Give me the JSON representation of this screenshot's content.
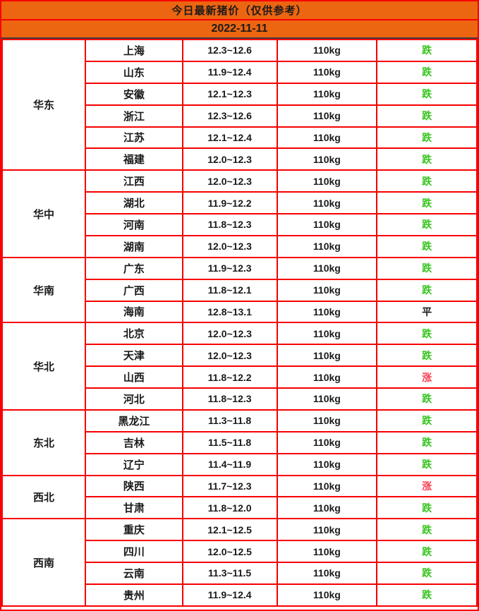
{
  "colors": {
    "header_bg": "#EC6511",
    "grid_border": "#F80000",
    "date_divider": "#3F3F3F",
    "trend_down_green": "#36C41E",
    "trend_up_red": "#FA3C4E",
    "trend_flat_black": "#1A1A1A"
  },
  "chart_data": {
    "type": "table",
    "title": "今日最新猪价（仅供参考）",
    "date": "2022-11-11",
    "legend": {
      "down_label": "跌",
      "up_label": "涨",
      "flat_label": "平"
    },
    "groups": [
      {
        "region": "华东",
        "rows": [
          {
            "province": "上海",
            "price": "12.3~12.6",
            "weight": "110kg",
            "trend": "跌",
            "trend_type": "down"
          },
          {
            "province": "山东",
            "price": "11.9~12.4",
            "weight": "110kg",
            "trend": "跌",
            "trend_type": "down"
          },
          {
            "province": "安徽",
            "price": "12.1~12.3",
            "weight": "110kg",
            "trend": "跌",
            "trend_type": "down"
          },
          {
            "province": "浙江",
            "price": "12.3~12.6",
            "weight": "110kg",
            "trend": "跌",
            "trend_type": "down"
          },
          {
            "province": "江苏",
            "price": "12.1~12.4",
            "weight": "110kg",
            "trend": "跌",
            "trend_type": "down"
          },
          {
            "province": "福建",
            "price": "12.0~12.3",
            "weight": "110kg",
            "trend": "跌",
            "trend_type": "down"
          }
        ]
      },
      {
        "region": "华中",
        "rows": [
          {
            "province": "江西",
            "price": "12.0~12.3",
            "weight": "110kg",
            "trend": "跌",
            "trend_type": "down"
          },
          {
            "province": "湖北",
            "price": "11.9~12.2",
            "weight": "110kg",
            "trend": "跌",
            "trend_type": "down"
          },
          {
            "province": "河南",
            "price": "11.8~12.3",
            "weight": "110kg",
            "trend": "跌",
            "trend_type": "down"
          },
          {
            "province": "湖南",
            "price": "12.0~12.3",
            "weight": "110kg",
            "trend": "跌",
            "trend_type": "down"
          }
        ]
      },
      {
        "region": "华南",
        "rows": [
          {
            "province": "广东",
            "price": "11.9~12.3",
            "weight": "110kg",
            "trend": "跌",
            "trend_type": "down"
          },
          {
            "province": "广西",
            "price": "11.8~12.1",
            "weight": "110kg",
            "trend": "跌",
            "trend_type": "down"
          },
          {
            "province": "海南",
            "price": "12.8~13.1",
            "weight": "110kg",
            "trend": "平",
            "trend_type": "flat"
          }
        ]
      },
      {
        "region": "华北",
        "rows": [
          {
            "province": "北京",
            "price": "12.0~12.3",
            "weight": "110kg",
            "trend": "跌",
            "trend_type": "down"
          },
          {
            "province": "天津",
            "price": "12.0~12.3",
            "weight": "110kg",
            "trend": "跌",
            "trend_type": "down"
          },
          {
            "province": "山西",
            "price": "11.8~12.2",
            "weight": "110kg",
            "trend": "涨",
            "trend_type": "up"
          },
          {
            "province": "河北",
            "price": "11.8~12.3",
            "weight": "110kg",
            "trend": "跌",
            "trend_type": "down"
          }
        ]
      },
      {
        "region": "东北",
        "rows": [
          {
            "province": "黑龙江",
            "price": "11.3~11.8",
            "weight": "110kg",
            "trend": "跌",
            "trend_type": "down"
          },
          {
            "province": "吉林",
            "price": "11.5~11.8",
            "weight": "110kg",
            "trend": "跌",
            "trend_type": "down"
          },
          {
            "province": "辽宁",
            "price": "11.4~11.9",
            "weight": "110kg",
            "trend": "跌",
            "trend_type": "down"
          }
        ]
      },
      {
        "region": "西北",
        "rows": [
          {
            "province": "陕西",
            "price": "11.7~12.3",
            "weight": "110kg",
            "trend": "涨",
            "trend_type": "up"
          },
          {
            "province": "甘肃",
            "price": "11.8~12.0",
            "weight": "110kg",
            "trend": "跌",
            "trend_type": "down"
          }
        ]
      },
      {
        "region": "西南",
        "rows": [
          {
            "province": "重庆",
            "price": "12.1~12.5",
            "weight": "110kg",
            "trend": "跌",
            "trend_type": "down"
          },
          {
            "province": "四川",
            "price": "12.0~12.5",
            "weight": "110kg",
            "trend": "跌",
            "trend_type": "down"
          },
          {
            "province": "云南",
            "price": "11.3~11.5",
            "weight": "110kg",
            "trend": "跌",
            "trend_type": "down"
          },
          {
            "province": "贵州",
            "price": "11.9~12.4",
            "weight": "110kg",
            "trend": "跌",
            "trend_type": "down"
          }
        ]
      }
    ]
  }
}
